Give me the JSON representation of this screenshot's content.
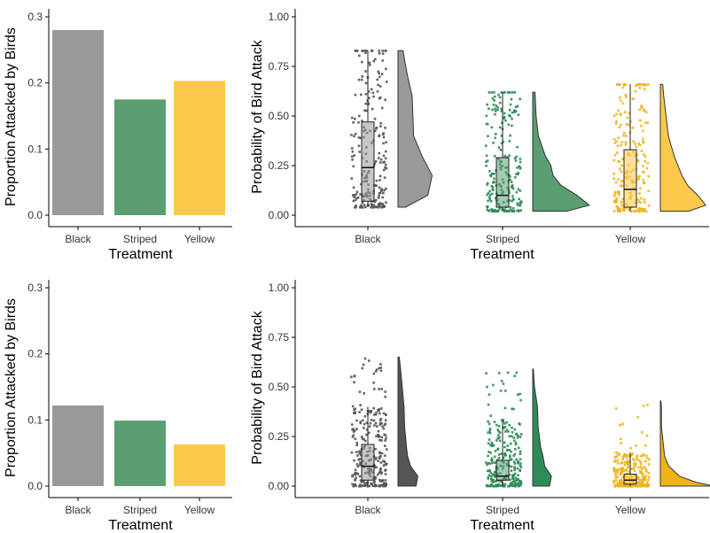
{
  "colors": {
    "Black": "#999999",
    "Striped": "#5a9e72",
    "Yellow": "#fdc94c",
    "Black_dark": "#555555",
    "Striped_dark": "#2e8b57",
    "Yellow_dark": "#f0b419"
  },
  "chart_data": [
    {
      "type": "bar",
      "panel": "top-left",
      "categories": [
        "Black",
        "Striped",
        "Yellow"
      ],
      "values": [
        0.28,
        0.175,
        0.203
      ],
      "xlabel": "Treatment",
      "ylabel": "Proportion Attacked by Birds",
      "ylim": [
        0,
        0.3
      ],
      "yticks": [
        "0.0",
        "0.1",
        "0.2",
        "0.3"
      ],
      "grid": false
    },
    {
      "type": "raincloud",
      "panel": "top-right",
      "categories": [
        "Black",
        "Striped",
        "Yellow"
      ],
      "xlabel": "Treatment",
      "ylabel": "Probability of Bird Attack",
      "ylim": [
        0,
        1
      ],
      "yticks": [
        "0.00",
        "0.25",
        "0.50",
        "0.75",
        "1.00"
      ],
      "grid": false,
      "boxes": [
        {
          "category": "Black",
          "min": 0.04,
          "q1": 0.07,
          "median": 0.24,
          "q3": 0.47,
          "max": 0.83
        },
        {
          "category": "Striped",
          "min": 0.02,
          "q1": 0.04,
          "median": 0.1,
          "q3": 0.29,
          "max": 0.62
        },
        {
          "category": "Yellow",
          "min": 0.02,
          "q1": 0.04,
          "median": 0.13,
          "q3": 0.33,
          "max": 0.66
        }
      ],
      "densities": [
        {
          "category": "Black",
          "y": [
            0.04,
            0.1,
            0.2,
            0.3,
            0.4,
            0.5,
            0.6,
            0.7,
            0.8,
            0.83
          ],
          "d": [
            0.2,
            0.8,
            0.92,
            0.64,
            0.42,
            0.4,
            0.38,
            0.26,
            0.16,
            0.14
          ]
        },
        {
          "category": "Striped",
          "y": [
            0.02,
            0.05,
            0.1,
            0.15,
            0.2,
            0.25,
            0.3,
            0.4,
            0.5,
            0.62
          ],
          "d": [
            0.6,
            1.0,
            0.78,
            0.5,
            0.36,
            0.32,
            0.22,
            0.1,
            0.06,
            0.04
          ]
        },
        {
          "category": "Yellow",
          "y": [
            0.02,
            0.05,
            0.1,
            0.15,
            0.2,
            0.3,
            0.4,
            0.5,
            0.6,
            0.66
          ],
          "d": [
            0.5,
            0.8,
            0.66,
            0.48,
            0.38,
            0.24,
            0.14,
            0.1,
            0.06,
            0.04
          ]
        }
      ]
    },
    {
      "type": "bar",
      "panel": "bottom-left",
      "categories": [
        "Black",
        "Striped",
        "Yellow"
      ],
      "values": [
        0.122,
        0.099,
        0.063
      ],
      "xlabel": "Treatment",
      "ylabel": "Proportion Attacked by Birds",
      "ylim": [
        0,
        0.3
      ],
      "yticks": [
        "0.0",
        "0.1",
        "0.2",
        "0.3"
      ],
      "grid": false
    },
    {
      "type": "raincloud",
      "panel": "bottom-right",
      "categories": [
        "Black",
        "Striped",
        "Yellow"
      ],
      "xlabel": "Treatment",
      "ylabel": "Probability of Bird Attack",
      "ylim": [
        0,
        1
      ],
      "yticks": [
        "0.00",
        "0.25",
        "0.50",
        "0.75",
        "1.00"
      ],
      "grid": false,
      "boxes": [
        {
          "category": "Black",
          "min": 0.0,
          "q1": 0.03,
          "median": 0.1,
          "q3": 0.21,
          "max": 0.4
        },
        {
          "category": "Striped",
          "min": 0.0,
          "q1": 0.03,
          "median": 0.05,
          "q3": 0.13,
          "max": 0.33
        },
        {
          "category": "Yellow",
          "min": 0.0,
          "q1": 0.01,
          "median": 0.03,
          "q3": 0.06,
          "max": 0.17
        }
      ],
      "densities": [
        {
          "category": "Black",
          "y": [
            0.0,
            0.05,
            0.1,
            0.15,
            0.2,
            0.3,
            0.4,
            0.5,
            0.6,
            0.65
          ],
          "d": [
            0.6,
            0.66,
            0.42,
            0.32,
            0.28,
            0.22,
            0.2,
            0.14,
            0.08,
            0.04
          ]
        },
        {
          "category": "Striped",
          "y": [
            0.0,
            0.05,
            0.1,
            0.15,
            0.2,
            0.3,
            0.4,
            0.5,
            0.59
          ],
          "d": [
            0.56,
            0.62,
            0.4,
            0.34,
            0.26,
            0.18,
            0.16,
            0.06,
            0.02
          ]
        },
        {
          "category": "Yellow",
          "y": [
            0.0,
            0.02,
            0.05,
            0.08,
            0.1,
            0.15,
            0.2,
            0.3,
            0.4,
            0.43
          ],
          "d": [
            1.0,
            0.66,
            0.36,
            0.24,
            0.16,
            0.08,
            0.06,
            0.02,
            0.02,
            0.01
          ]
        }
      ]
    }
  ]
}
